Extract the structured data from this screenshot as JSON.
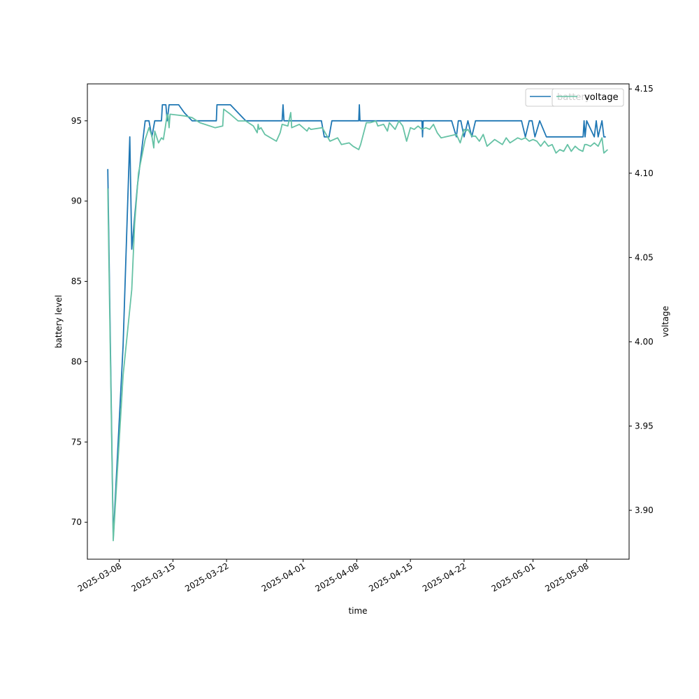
{
  "chart_data": {
    "type": "line",
    "xlabel": "time",
    "ylabel_left": "battery level",
    "ylabel_right": "voltage",
    "x_tick_labels": [
      "2025-03-08",
      "2025-03-15",
      "2025-03-22",
      "2025-04-01",
      "2025-04-08",
      "2025-04-15",
      "2025-04-22",
      "2025-05-01",
      "2025-05-08"
    ],
    "y_left_ticks": [
      70,
      75,
      80,
      85,
      90,
      95
    ],
    "y_right_ticks": [
      "3.90",
      "3.95",
      "4.00",
      "4.05",
      "4.10",
      "4.15"
    ],
    "ylim_left": [
      67.7,
      97.3
    ],
    "ylim_right": [
      3.871,
      4.153
    ],
    "xlim": [
      "2025-03-03T20:00",
      "2025-05-13T13:00"
    ],
    "legend": {
      "placement": "top-right",
      "entries": [
        "battery",
        "voltage"
      ]
    },
    "colors": {
      "battery": "#1f77b4",
      "voltage": "#66c2a5"
    },
    "series": [
      {
        "name": "battery",
        "axis": "left",
        "points": [
          [
            "2025-03-06T12:00",
            92
          ],
          [
            "2025-03-07T05:00",
            69
          ],
          [
            "2025-03-08T12:00",
            81
          ],
          [
            "2025-03-09T09:00",
            94
          ],
          [
            "2025-03-09T15:00",
            87
          ],
          [
            "2025-03-10T09:00",
            91
          ],
          [
            "2025-03-11T09:00",
            95
          ],
          [
            "2025-03-11T21:00",
            95
          ],
          [
            "2025-03-12T06:00",
            94
          ],
          [
            "2025-03-12T15:00",
            95
          ],
          [
            "2025-03-13T12:00",
            95
          ],
          [
            "2025-03-13T15:00",
            96
          ],
          [
            "2025-03-14T02:00",
            96
          ],
          [
            "2025-03-14T06:00",
            95
          ],
          [
            "2025-03-14T12:00",
            96
          ],
          [
            "2025-03-15T18:00",
            96
          ],
          [
            "2025-03-16T12:00",
            95.5
          ],
          [
            "2025-03-17T12:00",
            95
          ],
          [
            "2025-03-20T16:00",
            95
          ],
          [
            "2025-03-20T18:00",
            96
          ],
          [
            "2025-03-22T12:00",
            96
          ],
          [
            "2025-03-23T12:00",
            95.5
          ],
          [
            "2025-03-24T12:00",
            95
          ],
          [
            "2025-03-28T12:00",
            95
          ],
          [
            "2025-03-29T06:00",
            95
          ],
          [
            "2025-03-29T09:00",
            96
          ],
          [
            "2025-03-29T12:00",
            95
          ],
          [
            "2025-04-03T09:00",
            95
          ],
          [
            "2025-04-03T18:00",
            94
          ],
          [
            "2025-04-04T09:00",
            94
          ],
          [
            "2025-04-04T18:00",
            95
          ],
          [
            "2025-04-08T06:00",
            95
          ],
          [
            "2025-04-08T08:00",
            96
          ],
          [
            "2025-04-08T10:00",
            95
          ],
          [
            "2025-04-16T12:00",
            95
          ],
          [
            "2025-04-16T14:00",
            94
          ],
          [
            "2025-04-16T16:00",
            95
          ],
          [
            "2025-04-20T09:00",
            95
          ],
          [
            "2025-04-21T00:00",
            94
          ],
          [
            "2025-04-21T06:00",
            95
          ],
          [
            "2025-04-21T14:00",
            95
          ],
          [
            "2025-04-22T00:00",
            94
          ],
          [
            "2025-04-22T12:00",
            95
          ],
          [
            "2025-04-23T00:00",
            94
          ],
          [
            "2025-04-23T12:00",
            95
          ],
          [
            "2025-04-29T12:00",
            95
          ],
          [
            "2025-04-30T00:00",
            94
          ],
          [
            "2025-04-30T12:00",
            95
          ],
          [
            "2025-04-30T21:00",
            95
          ],
          [
            "2025-05-01T06:00",
            94
          ],
          [
            "2025-05-01T21:00",
            95
          ],
          [
            "2025-05-02T18:00",
            94
          ],
          [
            "2025-05-07T13:00",
            94
          ],
          [
            "2025-05-07T16:00",
            95
          ],
          [
            "2025-05-07T19:00",
            94
          ],
          [
            "2025-05-08T00:00",
            95
          ],
          [
            "2025-05-09T00:00",
            94
          ],
          [
            "2025-05-09T06:00",
            95
          ],
          [
            "2025-05-09T12:00",
            94
          ],
          [
            "2025-05-10T00:00",
            95
          ],
          [
            "2025-05-10T06:00",
            94
          ],
          [
            "2025-05-10T12:00",
            94
          ]
        ]
      },
      {
        "name": "voltage",
        "axis": "right",
        "points": [
          [
            "2025-03-06T12:00",
            4.091
          ],
          [
            "2025-03-07T05:00",
            3.882
          ],
          [
            "2025-03-08T12:00",
            3.98
          ],
          [
            "2025-03-09T15:00",
            4.031
          ],
          [
            "2025-03-10T00:00",
            4.07
          ],
          [
            "2025-03-10T12:00",
            4.1
          ],
          [
            "2025-03-11T09:00",
            4.12
          ],
          [
            "2025-03-11T21:00",
            4.127
          ],
          [
            "2025-03-12T06:00",
            4.122
          ],
          [
            "2025-03-12T12:00",
            4.115
          ],
          [
            "2025-03-12T15:00",
            4.125
          ],
          [
            "2025-03-13T03:00",
            4.118
          ],
          [
            "2025-03-13T12:00",
            4.121
          ],
          [
            "2025-03-13T18:00",
            4.12
          ],
          [
            "2025-03-14T00:00",
            4.127
          ],
          [
            "2025-03-14T06:00",
            4.135
          ],
          [
            "2025-03-14T09:00",
            4.134
          ],
          [
            "2025-03-14T12:00",
            4.127
          ],
          [
            "2025-03-14T15:00",
            4.135
          ],
          [
            "2025-03-16T12:00",
            4.134
          ],
          [
            "2025-03-17T12:00",
            4.133
          ],
          [
            "2025-03-18T12:00",
            4.13
          ],
          [
            "2025-03-20T12:00",
            4.127
          ],
          [
            "2025-03-21T12:00",
            4.128
          ],
          [
            "2025-03-21T15:00",
            4.138
          ],
          [
            "2025-03-22T12:00",
            4.135
          ],
          [
            "2025-03-23T12:00",
            4.131
          ],
          [
            "2025-03-24T12:00",
            4.131
          ],
          [
            "2025-03-25T12:00",
            4.128
          ],
          [
            "2025-03-26T00:00",
            4.124
          ],
          [
            "2025-03-26T03:00",
            4.129
          ],
          [
            "2025-03-26T06:00",
            4.126
          ],
          [
            "2025-03-26T12:00",
            4.127
          ],
          [
            "2025-03-27T00:00",
            4.123
          ],
          [
            "2025-03-28T12:00",
            4.119
          ],
          [
            "2025-03-29T00:00",
            4.124
          ],
          [
            "2025-03-29T06:00",
            4.129
          ],
          [
            "2025-03-30T00:00",
            4.128
          ],
          [
            "2025-03-30T09:00",
            4.136
          ],
          [
            "2025-03-30T12:00",
            4.127
          ],
          [
            "2025-03-31T12:00",
            4.129
          ],
          [
            "2025-04-01T12:00",
            4.125
          ],
          [
            "2025-04-01T18:00",
            4.127
          ],
          [
            "2025-04-02T00:00",
            4.126
          ],
          [
            "2025-04-03T12:00",
            4.127
          ],
          [
            "2025-04-04T12:00",
            4.119
          ],
          [
            "2025-04-05T12:00",
            4.121
          ],
          [
            "2025-04-06T00:00",
            4.117
          ],
          [
            "2025-04-07T00:00",
            4.118
          ],
          [
            "2025-04-07T12:00",
            4.116
          ],
          [
            "2025-04-08T06:00",
            4.114
          ],
          [
            "2025-04-08T12:00",
            4.117
          ],
          [
            "2025-04-09T06:00",
            4.13
          ],
          [
            "2025-04-09T18:00",
            4.13
          ],
          [
            "2025-04-10T12:00",
            4.131
          ],
          [
            "2025-04-10T18:00",
            4.128
          ],
          [
            "2025-04-11T12:00",
            4.129
          ],
          [
            "2025-04-12T00:00",
            4.125
          ],
          [
            "2025-04-12T06:00",
            4.13
          ],
          [
            "2025-04-13T00:00",
            4.126
          ],
          [
            "2025-04-13T12:00",
            4.131
          ],
          [
            "2025-04-14T00:00",
            4.128
          ],
          [
            "2025-04-14T12:00",
            4.119
          ],
          [
            "2025-04-15T00:00",
            4.127
          ],
          [
            "2025-04-15T12:00",
            4.126
          ],
          [
            "2025-04-16T00:00",
            4.128
          ],
          [
            "2025-04-16T12:00",
            4.126
          ],
          [
            "2025-04-17T00:00",
            4.127
          ],
          [
            "2025-04-17T12:00",
            4.126
          ],
          [
            "2025-04-18T00:00",
            4.129
          ],
          [
            "2025-04-18T12:00",
            4.124
          ],
          [
            "2025-04-19T00:00",
            4.121
          ],
          [
            "2025-04-20T00:00",
            4.122
          ],
          [
            "2025-04-21T00:00",
            4.123
          ],
          [
            "2025-04-21T12:00",
            4.118
          ],
          [
            "2025-04-22T00:00",
            4.126
          ],
          [
            "2025-04-22T06:00",
            4.125
          ],
          [
            "2025-04-22T12:00",
            4.126
          ],
          [
            "2025-04-23T00:00",
            4.122
          ],
          [
            "2025-04-23T12:00",
            4.122
          ],
          [
            "2025-04-24T00:00",
            4.119
          ],
          [
            "2025-04-24T12:00",
            4.123
          ],
          [
            "2025-04-25T00:00",
            4.116
          ],
          [
            "2025-04-26T00:00",
            4.12
          ],
          [
            "2025-04-27T00:00",
            4.117
          ],
          [
            "2025-04-27T12:00",
            4.121
          ],
          [
            "2025-04-28T00:00",
            4.118
          ],
          [
            "2025-04-29T00:00",
            4.121
          ],
          [
            "2025-04-29T12:00",
            4.12
          ],
          [
            "2025-04-30T00:00",
            4.121
          ],
          [
            "2025-04-30T12:00",
            4.119
          ],
          [
            "2025-05-01T00:00",
            4.12
          ],
          [
            "2025-05-01T12:00",
            4.119
          ],
          [
            "2025-05-02T00:00",
            4.116
          ],
          [
            "2025-05-02T12:00",
            4.119
          ],
          [
            "2025-05-03T00:00",
            4.116
          ],
          [
            "2025-05-03T12:00",
            4.117
          ],
          [
            "2025-05-04T00:00",
            4.112
          ],
          [
            "2025-05-04T12:00",
            4.114
          ],
          [
            "2025-05-05T00:00",
            4.113
          ],
          [
            "2025-05-05T12:00",
            4.117
          ],
          [
            "2025-05-06T00:00",
            4.113
          ],
          [
            "2025-05-06T12:00",
            4.116
          ],
          [
            "2025-05-07T00:00",
            4.114
          ],
          [
            "2025-05-07T12:00",
            4.113
          ],
          [
            "2025-05-07T18:00",
            4.117
          ],
          [
            "2025-05-08T00:00",
            4.117
          ],
          [
            "2025-05-08T12:00",
            4.116
          ],
          [
            "2025-05-09T00:00",
            4.118
          ],
          [
            "2025-05-09T12:00",
            4.116
          ],
          [
            "2025-05-10T00:00",
            4.121
          ],
          [
            "2025-05-10T06:00",
            4.112
          ],
          [
            "2025-05-10T18:00",
            4.114
          ]
        ]
      }
    ]
  }
}
